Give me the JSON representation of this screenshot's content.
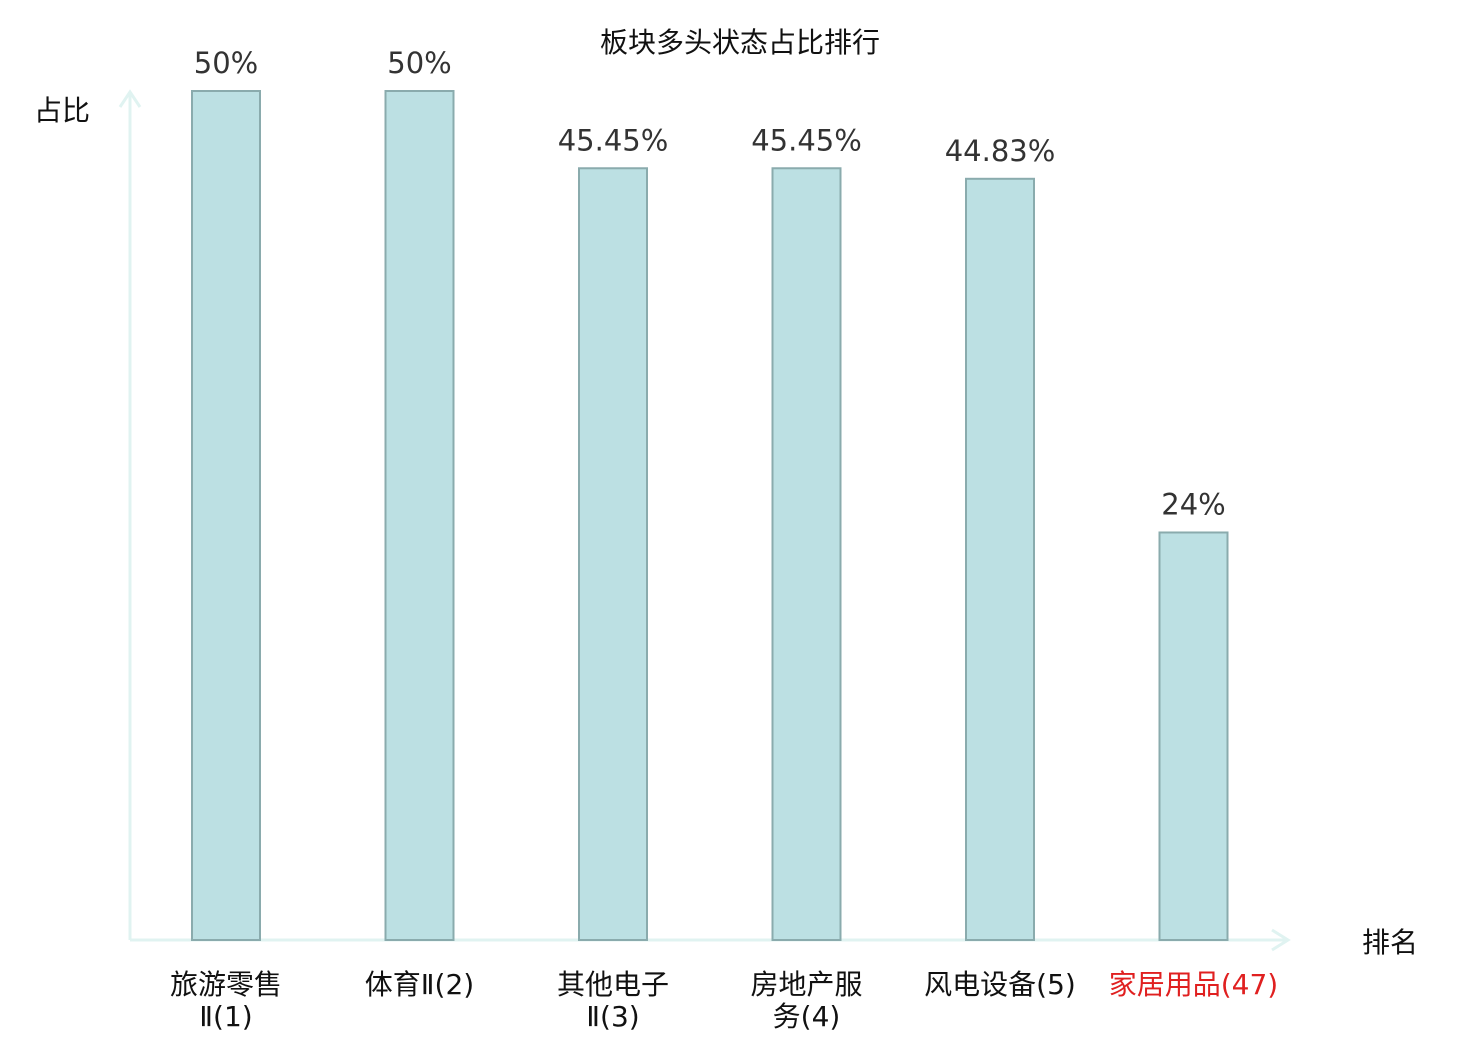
{
  "chart_data": {
    "type": "bar",
    "title": "板块多头状态占比排行",
    "xlabel": "排名",
    "ylabel": "占比",
    "categories": [
      {
        "line1": "旅游零售",
        "line2": "Ⅱ(1)",
        "highlight": false
      },
      {
        "line1": "体育Ⅱ(2)",
        "line2": "",
        "highlight": false
      },
      {
        "line1": "其他电子",
        "line2": "Ⅱ(3)",
        "highlight": false
      },
      {
        "line1": "房地产服",
        "line2": "务(4)",
        "highlight": false
      },
      {
        "line1": "风电设备(5)",
        "line2": "",
        "highlight": false
      },
      {
        "line1": "家居用品(47)",
        "line2": "",
        "highlight": true
      }
    ],
    "values": [
      50,
      50,
      45.45,
      45.45,
      44.83,
      24
    ],
    "value_labels": [
      "50%",
      "50%",
      "45.45%",
      "45.45%",
      "44.83%",
      "24%"
    ],
    "ylim": [
      0,
      50
    ],
    "grid": false,
    "colors": {
      "bar_fill": "#bce0e3",
      "bar_stroke": "#8aabad",
      "axis": "#e0f3f1",
      "label": "#333333",
      "category_text": "#111111",
      "highlight_text": "#e02020"
    }
  }
}
